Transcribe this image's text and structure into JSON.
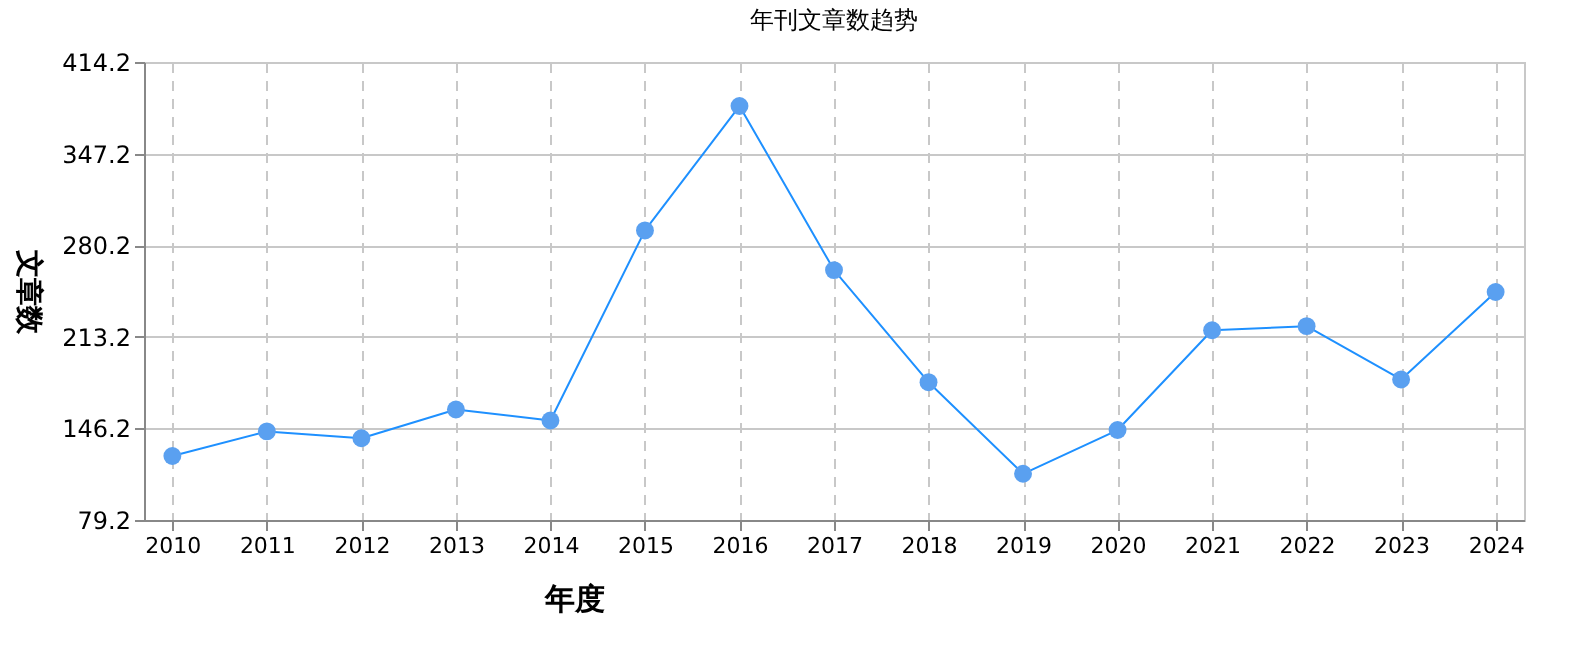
{
  "chart_data": {
    "type": "line",
    "title": "年刊文章数趋势",
    "xlabel": "年度",
    "ylabel": "文章数",
    "categories": [
      "2010",
      "2011",
      "2012",
      "2013",
      "2014",
      "2015",
      "2016",
      "2017",
      "2018",
      "2019",
      "2020",
      "2021",
      "2022",
      "2023",
      "2024"
    ],
    "series": [
      {
        "color": "#1e90ff",
        "values": [
          126,
          144,
          139,
          160,
          152,
          291,
          382,
          262,
          180,
          113,
          145,
          218,
          221,
          182,
          246
        ]
      }
    ],
    "ylim": [
      79.2,
      414.2
    ],
    "yticks": [
      79.2,
      146.2,
      213.2,
      280.2,
      347.2,
      414.2
    ],
    "grid": true,
    "marker": "circle",
    "line_style": "solid"
  }
}
